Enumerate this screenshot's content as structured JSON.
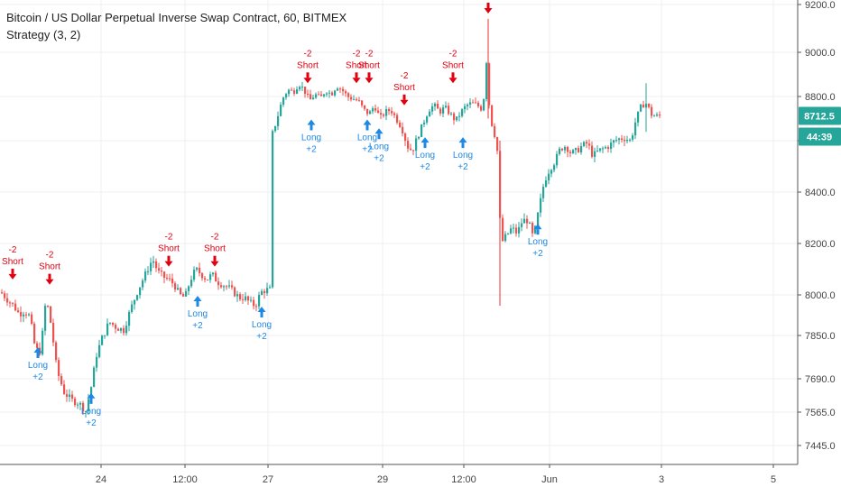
{
  "title": "Bitcoin / US Dollar Perpetual Inverse Swap Contract, 60, BITMEX",
  "indicator": "Strategy (3, 2)",
  "colors": {
    "up": "#26a69a",
    "down": "#ef5350",
    "short_signal": "#e0000f",
    "long_signal": "#1e88e5",
    "grid": "#eceff3",
    "axis_line": "#555555",
    "price_badge": "#26a69a",
    "timer_badge": "#26a69a"
  },
  "price_badge": "8712.5",
  "timer_badge": "44:39",
  "chart_data": {
    "type": "candlestick",
    "y_axis": {
      "ticks": [
        7445.0,
        7565.0,
        7690.0,
        7850.0,
        8000.0,
        8200.0,
        8400.0,
        8600.0,
        8800.0,
        9000.0,
        9200.0
      ],
      "tick_labels": [
        "7445.0",
        "7565.0",
        "7690.0",
        "7850.0",
        "8000.0",
        "8200.0",
        "8400.0",
        "8600.0",
        "8800.0",
        "9000.0",
        "9200.0"
      ]
    },
    "x_axis": {
      "tick_labels": [
        "24",
        "12:00",
        "27",
        "29",
        "12:00",
        "Jun",
        "3",
        "5"
      ]
    },
    "price_path": [
      [
        0,
        8010
      ],
      [
        8,
        7980
      ],
      [
        14,
        7960
      ],
      [
        20,
        7930
      ],
      [
        26,
        7940
      ],
      [
        32,
        7920
      ],
      [
        38,
        7800
      ],
      [
        44,
        7790
      ],
      [
        50,
        7990
      ],
      [
        56,
        7880
      ],
      [
        62,
        7720
      ],
      [
        70,
        7640
      ],
      [
        78,
        7610
      ],
      [
        86,
        7600
      ],
      [
        94,
        7570
      ],
      [
        100,
        7660
      ],
      [
        106,
        7780
      ],
      [
        112,
        7840
      ],
      [
        120,
        7900
      ],
      [
        128,
        7880
      ],
      [
        136,
        7870
      ],
      [
        144,
        7950
      ],
      [
        152,
        8020
      ],
      [
        160,
        8080
      ],
      [
        168,
        8140
      ],
      [
        174,
        8090
      ],
      [
        180,
        8070
      ],
      [
        186,
        8060
      ],
      [
        192,
        8040
      ],
      [
        198,
        8000
      ],
      [
        204,
        7990
      ],
      [
        210,
        8060
      ],
      [
        216,
        8100
      ],
      [
        222,
        8080
      ],
      [
        228,
        8060
      ],
      [
        234,
        8080
      ],
      [
        240,
        8050
      ],
      [
        246,
        8040
      ],
      [
        252,
        8030
      ],
      [
        258,
        8010
      ],
      [
        264,
        7990
      ],
      [
        270,
        7990
      ],
      [
        276,
        7970
      ],
      [
        282,
        7960
      ],
      [
        288,
        8010
      ],
      [
        294,
        8020
      ],
      [
        298,
        8020
      ],
      [
        300,
        8620
      ],
      [
        306,
        8700
      ],
      [
        312,
        8790
      ],
      [
        318,
        8830
      ],
      [
        324,
        8820
      ],
      [
        330,
        8860
      ],
      [
        336,
        8830
      ],
      [
        342,
        8780
      ],
      [
        348,
        8810
      ],
      [
        354,
        8790
      ],
      [
        360,
        8830
      ],
      [
        366,
        8810
      ],
      [
        372,
        8850
      ],
      [
        378,
        8830
      ],
      [
        384,
        8800
      ],
      [
        390,
        8790
      ],
      [
        396,
        8780
      ],
      [
        402,
        8740
      ],
      [
        408,
        8720
      ],
      [
        414,
        8760
      ],
      [
        420,
        8700
      ],
      [
        426,
        8730
      ],
      [
        432,
        8740
      ],
      [
        438,
        8700
      ],
      [
        444,
        8660
      ],
      [
        450,
        8580
      ],
      [
        456,
        8560
      ],
      [
        462,
        8620
      ],
      [
        468,
        8680
      ],
      [
        474,
        8740
      ],
      [
        480,
        8760
      ],
      [
        486,
        8730
      ],
      [
        492,
        8750
      ],
      [
        498,
        8720
      ],
      [
        504,
        8690
      ],
      [
        510,
        8730
      ],
      [
        516,
        8760
      ],
      [
        522,
        8770
      ],
      [
        528,
        8760
      ],
      [
        534,
        8740
      ],
      [
        538,
        8960
      ],
      [
        542,
        8700
      ],
      [
        546,
        8650
      ],
      [
        550,
        8560
      ],
      [
        554,
        8200
      ],
      [
        560,
        8230
      ],
      [
        566,
        8260
      ],
      [
        572,
        8240
      ],
      [
        578,
        8290
      ],
      [
        584,
        8290
      ],
      [
        590,
        8220
      ],
      [
        596,
        8330
      ],
      [
        602,
        8440
      ],
      [
        608,
        8490
      ],
      [
        614,
        8520
      ],
      [
        620,
        8570
      ],
      [
        626,
        8580
      ],
      [
        632,
        8550
      ],
      [
        638,
        8560
      ],
      [
        644,
        8580
      ],
      [
        650,
        8590
      ],
      [
        656,
        8540
      ],
      [
        662,
        8560
      ],
      [
        668,
        8570
      ],
      [
        674,
        8580
      ],
      [
        680,
        8600
      ],
      [
        686,
        8610
      ],
      [
        692,
        8610
      ],
      [
        698,
        8600
      ],
      [
        704,
        8700
      ],
      [
        710,
        8760
      ],
      [
        716,
        8770
      ],
      [
        720,
        8720
      ],
      [
        726,
        8710
      ],
      [
        730,
        8712.5
      ]
    ],
    "signals": [
      {
        "type": "short",
        "line1": "-2",
        "line2": "Short",
        "x": 14,
        "price": 8060
      },
      {
        "type": "short",
        "line1": "-2",
        "line2": "Short",
        "x": 55,
        "price": 8040
      },
      {
        "type": "short",
        "line1": "-2",
        "line2": "Short",
        "x": 187,
        "price": 8110
      },
      {
        "type": "short",
        "line1": "-2",
        "line2": "Short",
        "x": 238,
        "price": 8110
      },
      {
        "type": "short",
        "line1": "-2",
        "line2": "Short",
        "x": 341,
        "price": 8860
      },
      {
        "type": "short",
        "line1": "-2",
        "line2": "Short",
        "x": 395,
        "price": 8860
      },
      {
        "type": "short",
        "line1": "-2",
        "line2": "Short",
        "x": 409,
        "price": 8860
      },
      {
        "type": "short",
        "line1": "-2",
        "line2": "Short",
        "x": 448,
        "price": 8760
      },
      {
        "type": "short",
        "line1": "-2",
        "line2": "Short",
        "x": 502,
        "price": 8860
      },
      {
        "type": "long",
        "line1": "Long",
        "line2": "+2",
        "x": 42,
        "price": 7810
      },
      {
        "type": "long",
        "line1": "Long",
        "line2": "+2",
        "x": 101,
        "price": 7640
      },
      {
        "type": "long",
        "line1": "Long",
        "line2": "+2",
        "x": 219,
        "price": 8000
      },
      {
        "type": "long",
        "line1": "Long",
        "line2": "+2",
        "x": 290,
        "price": 7960
      },
      {
        "type": "long",
        "line1": "Long",
        "line2": "+2",
        "x": 345,
        "price": 8700
      },
      {
        "type": "long",
        "line1": "Long",
        "line2": "+2",
        "x": 407,
        "price": 8700
      },
      {
        "type": "long",
        "line1": "Long",
        "line2": "+2",
        "x": 420,
        "price": 8660
      },
      {
        "type": "long",
        "line1": "Long",
        "line2": "+2",
        "x": 471,
        "price": 8620
      },
      {
        "type": "long",
        "line1": "Long",
        "line2": "+2",
        "x": 513,
        "price": 8620
      },
      {
        "type": "long",
        "line1": "Long",
        "line2": "+2",
        "x": 596,
        "price": 8280
      }
    ],
    "top_markers": [
      {
        "type": "short",
        "x": 541
      }
    ]
  }
}
